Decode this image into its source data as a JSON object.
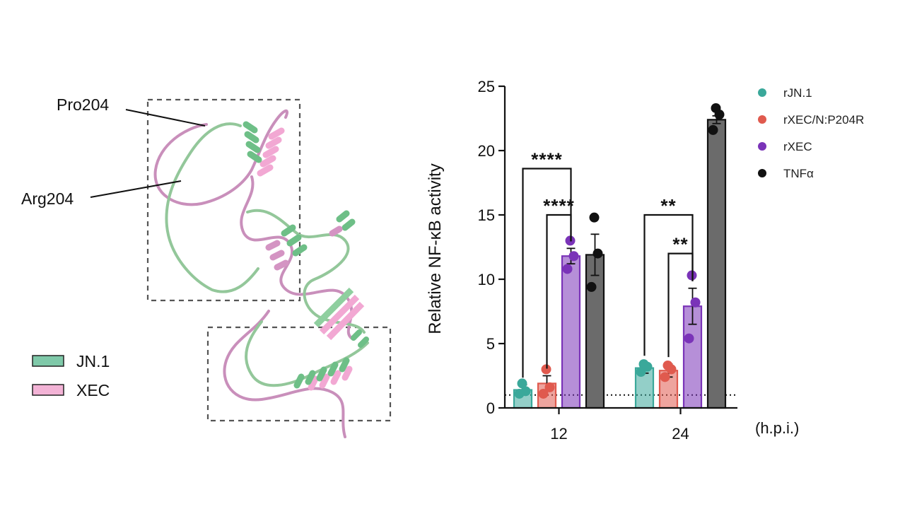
{
  "structure": {
    "labels": [
      "Pro204",
      "Arg204"
    ],
    "legend": [
      {
        "name": "JN.1",
        "color": "#7fc9a9"
      },
      {
        "name": "XEC",
        "color": "#f3b3d6"
      }
    ],
    "colors": {
      "jn1_ribbon": "#8fc99a",
      "xec_ribbon": "#d49ac6",
      "box": "#555555"
    }
  },
  "chart_data": {
    "type": "bar",
    "ylabel": "Relative NF-κB activity",
    "xlabel": "(h.p.i.)",
    "categories": [
      "12",
      "24"
    ],
    "ylim": [
      0,
      25
    ],
    "yticks": [
      0,
      5,
      10,
      15,
      20,
      25
    ],
    "baseline": 1,
    "series": [
      {
        "name": "rJN.1",
        "color": "#3aa89a",
        "values": [
          1.4,
          3.1
        ],
        "sem": [
          0.4,
          0.4
        ],
        "points": [
          [
            1.9,
            1.3,
            1.1
          ],
          [
            3.4,
            3.2,
            2.8
          ]
        ]
      },
      {
        "name": "rXEC/N:P204R",
        "color": "#e05a4e",
        "values": [
          1.9,
          2.9
        ],
        "sem": [
          0.6,
          0.5
        ],
        "points": [
          [
            3.0,
            1.6,
            1.1
          ],
          [
            3.3,
            3.0,
            2.4
          ]
        ]
      },
      {
        "name": "rXEC",
        "color": "#7a33b8",
        "values": [
          11.8,
          7.9
        ],
        "sem": [
          0.6,
          1.4
        ],
        "points": [
          [
            13.0,
            11.8,
            10.8
          ],
          [
            10.3,
            8.2,
            5.4
          ]
        ]
      },
      {
        "name": "TNFα",
        "color": "#111111",
        "bar_color": "#6b6b6b",
        "values": [
          11.9,
          22.4
        ],
        "sem": [
          1.6,
          0.3
        ],
        "points": [
          [
            14.8,
            12.0,
            9.4
          ],
          [
            23.3,
            22.8,
            21.6
          ]
        ]
      }
    ],
    "significance": [
      {
        "group": 0,
        "from": 0,
        "to": 2,
        "label": "****",
        "y": 18.6
      },
      {
        "group": 0,
        "from": 1,
        "to": 2,
        "label": "****",
        "y": 15.0
      },
      {
        "group": 1,
        "from": 0,
        "to": 2,
        "label": "**",
        "y": 15.0
      },
      {
        "group": 1,
        "from": 1,
        "to": 2,
        "label": "**",
        "y": 12.0
      }
    ],
    "legend_position": "top-right"
  }
}
